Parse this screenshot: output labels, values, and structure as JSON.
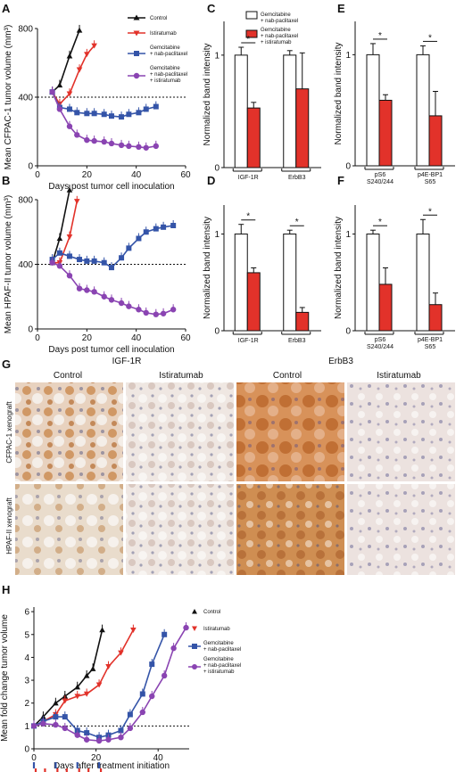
{
  "panel_labels": {
    "a": "A",
    "b": "B",
    "c": "C",
    "d": "D",
    "e": "E",
    "f": "F",
    "g": "G",
    "h": "H"
  },
  "legend_tumor": {
    "control": "Control",
    "istiratumab": "Istiratumab",
    "gem_nab": [
      "Gemcitabine",
      "+ nab-paclitaxel"
    ],
    "gem_nab_isti": [
      "Gemcitabine",
      "+ nab-paclitaxel",
      "+ istiratumab"
    ]
  },
  "legend_bar": {
    "gem_nab": [
      "Gemcitabine",
      "+ nab-paclitaxel"
    ],
    "gem_nab_isti": [
      "Gemcitabine",
      "+ nab-paclitaxel",
      "+ istiratumab"
    ]
  },
  "panel_g": {
    "headers": [
      "IGF-1R",
      "ErbB3"
    ],
    "subheaders": [
      "Control",
      "Istiratumab",
      "Control",
      "Istiratumab"
    ],
    "row_labels": [
      "CFPAC-1 xenograft",
      "HPAF-II xenograft"
    ]
  },
  "colors": {
    "control": "#111111",
    "istiratumab": "#e2322a",
    "gem_nab": "#3454a8",
    "gem_nab_isti": "#8a44b2"
  },
  "chart_data": [
    {
      "id": "A",
      "type": "line",
      "xlabel": "Days post tumor cell inoculation",
      "ylabel": "Mean CFPAC-1 tumor volume (mm³)",
      "xlim": [
        0,
        60
      ],
      "ylim": [
        0,
        800
      ],
      "xticks": [
        0,
        20,
        40,
        60
      ],
      "yticks": [
        0,
        400,
        800
      ],
      "reference_line": 400,
      "series": [
        {
          "name": "Control",
          "marker": "triangle-up",
          "x": [
            6,
            9,
            13,
            17
          ],
          "y": [
            430,
            470,
            640,
            790
          ]
        },
        {
          "name": "Istiratumab",
          "marker": "triangle-down",
          "x": [
            6,
            9,
            13,
            17,
            20,
            23
          ],
          "y": [
            430,
            360,
            420,
            560,
            650,
            700
          ]
        },
        {
          "name": "Gemcitabine + nab-paclitaxel",
          "marker": "square",
          "x": [
            6,
            9,
            13,
            16,
            20,
            23,
            27,
            30,
            34,
            37,
            41,
            44,
            48
          ],
          "y": [
            430,
            340,
            330,
            310,
            305,
            305,
            300,
            290,
            285,
            300,
            310,
            330,
            345
          ]
        },
        {
          "name": "Gemcitabine + nab-paclitaxel + istiratumab",
          "marker": "circle",
          "x": [
            6,
            9,
            13,
            16,
            20,
            23,
            27,
            30,
            34,
            37,
            41,
            44,
            48
          ],
          "y": [
            430,
            330,
            230,
            180,
            150,
            145,
            140,
            130,
            120,
            115,
            110,
            105,
            115
          ]
        }
      ]
    },
    {
      "id": "B",
      "type": "line",
      "xlabel": "Days post tumor cell inoculation",
      "ylabel": "Mean HPAF-II tumor volume (mm³)",
      "xlim": [
        0,
        60
      ],
      "ylim": [
        0,
        800
      ],
      "xticks": [
        0,
        20,
        40,
        60
      ],
      "yticks": [
        0,
        400,
        800
      ],
      "reference_line": 400,
      "series": [
        {
          "name": "Control",
          "marker": "triangle-up",
          "x": [
            6,
            9,
            13
          ],
          "y": [
            410,
            560,
            860
          ]
        },
        {
          "name": "Istiratumab",
          "marker": "triangle-down",
          "x": [
            6,
            9,
            13,
            16
          ],
          "y": [
            410,
            410,
            570,
            790
          ]
        },
        {
          "name": "Gemcitabine + nab-paclitaxel",
          "marker": "square",
          "x": [
            6,
            9,
            13,
            17,
            20,
            23,
            27,
            30,
            34,
            37,
            41,
            44,
            48,
            51,
            55
          ],
          "y": [
            430,
            470,
            450,
            430,
            420,
            420,
            410,
            380,
            440,
            500,
            560,
            600,
            620,
            630,
            640
          ]
        },
        {
          "name": "Gemcitabine + nab-paclitaxel + istiratumab",
          "marker": "circle",
          "x": [
            6,
            9,
            13,
            17,
            20,
            23,
            27,
            30,
            34,
            37,
            41,
            44,
            48,
            51,
            55
          ],
          "y": [
            410,
            390,
            330,
            250,
            240,
            230,
            200,
            180,
            160,
            140,
            120,
            100,
            90,
            95,
            120
          ]
        }
      ]
    },
    {
      "id": "C",
      "type": "bar",
      "ylabel": "Normalized band intensity",
      "ylim": [
        0,
        1.3
      ],
      "yticks": [
        0,
        1
      ],
      "categories": [
        "IGF-1R",
        "ErbB3"
      ],
      "series": [
        {
          "name": "Gemcitabine + nab-paclitaxel",
          "values": [
            1.0,
            1.0
          ],
          "errors": [
            0.07,
            0.04
          ]
        },
        {
          "name": "Gemcitabine + nab-paclitaxel + istiratumab",
          "values": [
            0.53,
            0.7
          ],
          "errors": [
            0.05,
            0.32
          ]
        }
      ],
      "significance": [
        "*",
        ""
      ]
    },
    {
      "id": "D",
      "type": "bar",
      "ylabel": "Normalized band intensity",
      "ylim": [
        0,
        1.3
      ],
      "yticks": [
        0,
        1
      ],
      "categories": [
        "IGF-1R",
        "ErbB3"
      ],
      "series": [
        {
          "name": "Gemcitabine + nab-paclitaxel",
          "values": [
            1.0,
            1.0
          ],
          "errors": [
            0.1,
            0.04
          ]
        },
        {
          "name": "Gemcitabine + nab-paclitaxel + istiratumab",
          "values": [
            0.6,
            0.19
          ],
          "errors": [
            0.05,
            0.05
          ]
        }
      ],
      "significance": [
        "*",
        "*"
      ]
    },
    {
      "id": "E",
      "type": "bar",
      "ylabel": "Normalized band intensity",
      "ylim": [
        0,
        1.3
      ],
      "yticks": [
        0,
        1
      ],
      "categories": [
        "pS6 S240/244",
        "p4E-BP1 S65"
      ],
      "series": [
        {
          "name": "Gemcitabine + nab-paclitaxel",
          "values": [
            1.0,
            1.0
          ],
          "errors": [
            0.1,
            0.08
          ]
        },
        {
          "name": "Gemcitabine + nab-paclitaxel + istiratumab",
          "values": [
            0.59,
            0.45
          ],
          "errors": [
            0.05,
            0.22
          ]
        }
      ],
      "significance": [
        "*",
        "*"
      ]
    },
    {
      "id": "F",
      "type": "bar",
      "ylabel": "Normalized band intensity",
      "ylim": [
        0,
        1.3
      ],
      "yticks": [
        0,
        1
      ],
      "categories": [
        "pS6 S240/244",
        "p4E-BP1 S65"
      ],
      "series": [
        {
          "name": "Gemcitabine + nab-paclitaxel",
          "values": [
            1.0,
            1.0
          ],
          "errors": [
            0.04,
            0.15
          ]
        },
        {
          "name": "Gemcitabine + nab-paclitaxel + istiratumab",
          "values": [
            0.48,
            0.27
          ],
          "errors": [
            0.17,
            0.12
          ]
        }
      ],
      "significance": [
        "*",
        "*"
      ]
    },
    {
      "id": "H",
      "type": "line",
      "xlabel": "Days after treatment initiation",
      "ylabel": "Mean fold change tumor volume",
      "xlim": [
        0,
        50
      ],
      "ylim": [
        0,
        6.2
      ],
      "xticks": [
        0,
        20,
        40
      ],
      "yticks": [
        0,
        1,
        2,
        3,
        4,
        5,
        6
      ],
      "reference_line": 1,
      "series": [
        {
          "name": "Control",
          "marker": "triangle-up",
          "x": [
            0,
            3,
            7,
            10,
            14,
            17,
            19,
            22
          ],
          "y": [
            1,
            1.4,
            2.0,
            2.3,
            2.7,
            3.2,
            3.5,
            5.2
          ]
        },
        {
          "name": "Istiratumab",
          "marker": "triangle-down",
          "x": [
            0,
            3,
            7,
            10,
            14,
            17,
            21,
            24,
            28,
            32
          ],
          "y": [
            1,
            1.2,
            1.5,
            2.1,
            2.3,
            2.4,
            2.8,
            3.6,
            4.2,
            5.2
          ]
        },
        {
          "name": "Gemcitabine + nab-paclitaxel",
          "marker": "square",
          "x": [
            0,
            3,
            7,
            10,
            14,
            17,
            21,
            24,
            28,
            31,
            35,
            38,
            42
          ],
          "y": [
            1,
            1.2,
            1.4,
            1.4,
            0.8,
            0.7,
            0.5,
            0.6,
            0.8,
            1.5,
            2.4,
            3.7,
            5.0
          ]
        },
        {
          "name": "Gemcitabine + nab-paclitaxel + istiratumab",
          "marker": "circle",
          "x": [
            0,
            3,
            7,
            10,
            14,
            17,
            21,
            24,
            28,
            31,
            35,
            38,
            42,
            45,
            49
          ],
          "y": [
            1,
            1.1,
            1.05,
            0.9,
            0.6,
            0.4,
            0.35,
            0.4,
            0.5,
            0.9,
            1.6,
            2.3,
            3.2,
            4.4,
            5.3
          ]
        }
      ],
      "dosing_markers": [
        "blue",
        "red"
      ]
    }
  ]
}
